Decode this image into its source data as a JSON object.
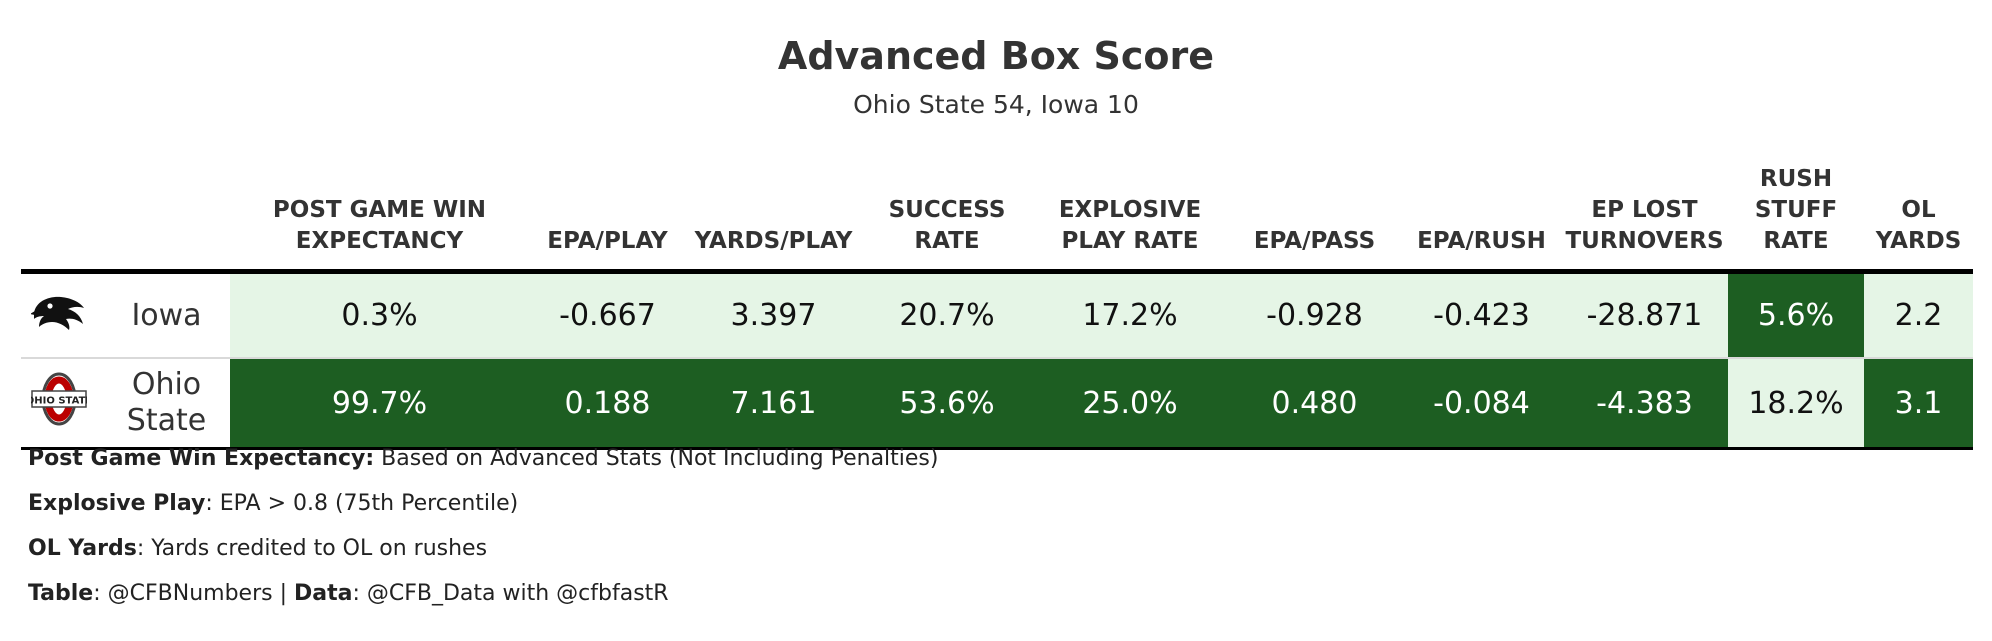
{
  "title": "Advanced Box Score",
  "subtitle": "Ohio State 54, Iowa 10",
  "columns": [
    {
      "key": "win_exp",
      "label": "POST GAME WIN EXPECTANCY"
    },
    {
      "key": "epa_play",
      "label": "EPA/PLAY"
    },
    {
      "key": "yards_play",
      "label": "YARDS/PLAY"
    },
    {
      "key": "success_rate",
      "label": "SUCCESS RATE"
    },
    {
      "key": "explosive_rate",
      "label": "EXPLOSIVE PLAY RATE"
    },
    {
      "key": "epa_pass",
      "label": "EPA/PASS"
    },
    {
      "key": "epa_rush",
      "label": "EPA/RUSH"
    },
    {
      "key": "ep_lost",
      "label": "EP LOST TURNOVERS"
    },
    {
      "key": "rush_stuff",
      "label": "RUSH STUFF RATE"
    },
    {
      "key": "ol_yards",
      "label": "OL YARDS"
    }
  ],
  "colors": {
    "light": "#e5f5e6",
    "dark": "#1d5e22",
    "iowa_logo": "#111111",
    "osu_logo": "#bb0000"
  },
  "rows": [
    {
      "team": "Iowa",
      "logo_icon": "iowa-hawkeye-icon",
      "values": [
        "0.3%",
        "-0.667",
        "3.397",
        "20.7%",
        "17.2%",
        "-0.928",
        "-0.423",
        "-28.871",
        "5.6%",
        "2.2"
      ],
      "shade": [
        "light",
        "light",
        "light",
        "light",
        "light",
        "light",
        "light",
        "light",
        "dark",
        "light"
      ]
    },
    {
      "team": "Ohio State",
      "logo_icon": "ohio-state-logo-icon",
      "logo_text": "OHIO STATE",
      "values": [
        "99.7%",
        "0.188",
        "7.161",
        "53.6%",
        "25.0%",
        "0.480",
        "-0.084",
        "-4.383",
        "18.2%",
        "3.1"
      ],
      "shade": [
        "dark",
        "dark",
        "dark",
        "dark",
        "dark",
        "dark",
        "dark",
        "dark",
        "light",
        "dark"
      ]
    }
  ],
  "notes": [
    {
      "bold": "Post Game Win Expectancy:",
      "text": " Based on Advanced Stats (Not Including Penalties)"
    },
    {
      "bold": "Explosive Play",
      "text": ": EPA > 0.8 (75th Percentile)"
    },
    {
      "bold": "OL Yards",
      "text": ": Yards credited to OL on rushes"
    }
  ],
  "credit": {
    "table_label": "Table",
    "table_value": ": @CFBNumbers | ",
    "data_label": "Data",
    "data_value": ": @CFB_Data with @cfbfastR"
  },
  "chart_data": {
    "type": "table",
    "title": "Advanced Box Score",
    "subtitle": "Ohio State 54, Iowa 10",
    "columns": [
      "POST GAME WIN EXPECTANCY",
      "EPA/PLAY",
      "YARDS/PLAY",
      "SUCCESS RATE",
      "EXPLOSIVE PLAY RATE",
      "EPA/PASS",
      "EPA/RUSH",
      "EP LOST TURNOVERS",
      "RUSH STUFF RATE",
      "OL YARDS"
    ],
    "rows": [
      {
        "team": "Iowa",
        "values": [
          "0.3%",
          "-0.667",
          "3.397",
          "20.7%",
          "17.2%",
          "-0.928",
          "-0.423",
          "-28.871",
          "5.6%",
          "2.2"
        ]
      },
      {
        "team": "Ohio State",
        "values": [
          "99.7%",
          "0.188",
          "7.161",
          "53.6%",
          "25.0%",
          "0.480",
          "-0.084",
          "-4.383",
          "18.2%",
          "3.1"
        ]
      }
    ]
  }
}
